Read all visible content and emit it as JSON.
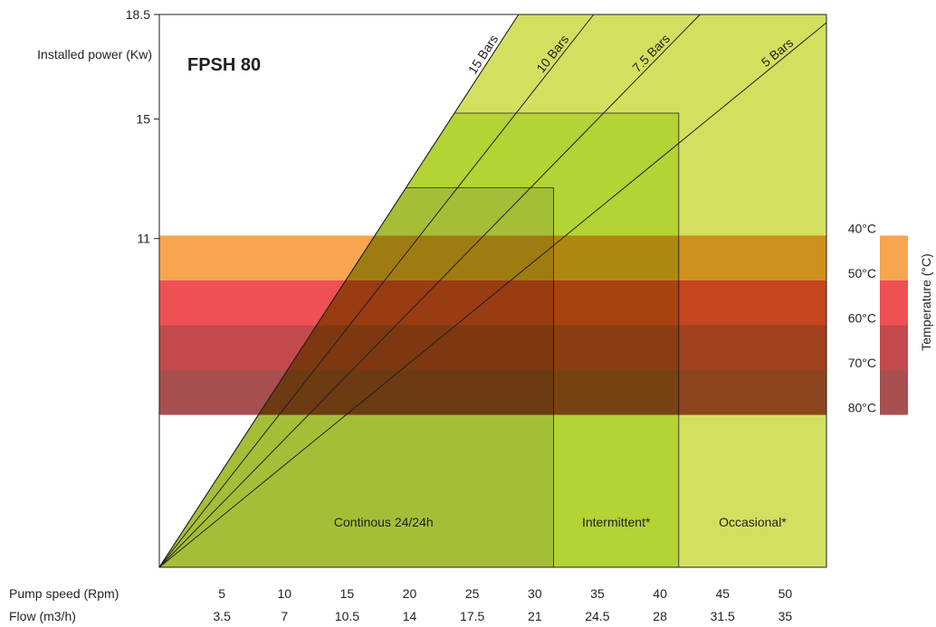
{
  "chart_data": {
    "type": "area",
    "title": "FPSH 80",
    "ylabel": "Installed power (Kw)",
    "y_ticks": [
      "11",
      "15",
      "18.5"
    ],
    "ylim": [
      0,
      18.5
    ],
    "x_axes": [
      {
        "label": "Pump speed (Rpm)",
        "ticks": [
          "5",
          "10",
          "15",
          "20",
          "25",
          "30",
          "35",
          "40",
          "45",
          "50"
        ]
      },
      {
        "label": "Flow (m3/h)",
        "ticks": [
          "3.5",
          "7",
          "10.5",
          "14",
          "17.5",
          "21",
          "24.5",
          "28",
          "31.5",
          "35"
        ]
      }
    ],
    "xlim": [
      0,
      53.3
    ],
    "pressure_lines": [
      {
        "name": "15 Bars",
        "top_speed": 28.7
      },
      {
        "name": "10 Bars",
        "top_speed": 34.7
      },
      {
        "name": "7.5 Bars",
        "top_speed": 43.2
      },
      {
        "name": "5 Bars",
        "top_speed": 54.1
      }
    ],
    "duty_zones": [
      {
        "name": "Continous 24/24h",
        "max_speed": 31.5,
        "max_power": 12.7,
        "color": "#a4bf37"
      },
      {
        "name": "Intermittent*",
        "max_speed": 41.5,
        "max_power": 15.2,
        "color": "#b4d334"
      },
      {
        "name": "Occasional*",
        "max_speed": 53.3,
        "max_power": 18.5,
        "color": "#d3e05f"
      }
    ],
    "temperature": {
      "label": "Temperature (°C)",
      "ticks": [
        "40°C",
        "50°C",
        "60°C",
        "70°C",
        "80°C"
      ],
      "bands": [
        {
          "from": "40°C",
          "to": "50°C",
          "color": "#f7a54f"
        },
        {
          "from": "50°C",
          "to": "60°C",
          "color": "#ee5053"
        },
        {
          "from": "60°C",
          "to": "70°C",
          "color": "#c24a4c"
        },
        {
          "from": "70°C",
          "to": "80°C",
          "color": "#a84f50"
        }
      ],
      "power_levels": [
        11.1,
        9.6,
        8.1,
        6.6,
        5.1
      ]
    }
  }
}
